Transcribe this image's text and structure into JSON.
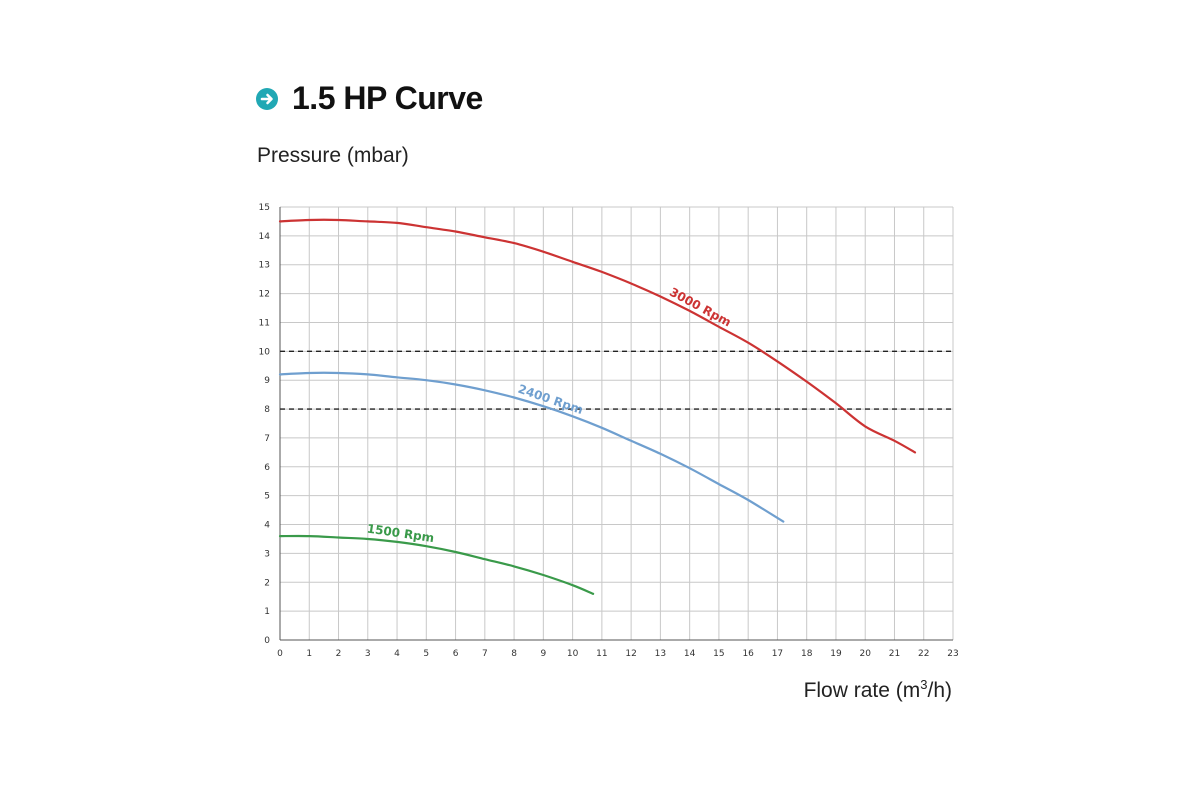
{
  "header": {
    "title": "1.5 HP Curve",
    "icon": "arrow-right-circle-icon",
    "icon_color": "#21a8b4"
  },
  "chart_data": {
    "type": "line",
    "ylabel": "Pressure (mbar)",
    "xlabel_main": "Flow rate (m",
    "xlabel_sup": "3",
    "xlabel_tail": "/h)",
    "xlim": [
      0,
      23
    ],
    "ylim": [
      0,
      15
    ],
    "xticks": [
      "0",
      "1",
      "2",
      "3",
      "4",
      "5",
      "6",
      "7",
      "8",
      "9",
      "10",
      "11",
      "12",
      "13",
      "14",
      "15",
      "16",
      "17",
      "18",
      "19",
      "20",
      "21",
      "22",
      "23"
    ],
    "yticks": [
      "0",
      "1",
      "2",
      "3",
      "4",
      "5",
      "6",
      "7",
      "8",
      "9",
      "10",
      "11",
      "12",
      "13",
      "14",
      "15"
    ],
    "grid": true,
    "reference_lines": [
      10,
      8
    ],
    "series": [
      {
        "name": "3000 Rpm",
        "color": "#cc3333",
        "points": [
          [
            0,
            14.5
          ],
          [
            1,
            14.55
          ],
          [
            2,
            14.55
          ],
          [
            3,
            14.5
          ],
          [
            4,
            14.45
          ],
          [
            5,
            14.3
          ],
          [
            6,
            14.15
          ],
          [
            7,
            13.95
          ],
          [
            8,
            13.75
          ],
          [
            9,
            13.45
          ],
          [
            10,
            13.1
          ],
          [
            11,
            12.75
          ],
          [
            12,
            12.35
          ],
          [
            13,
            11.9
          ],
          [
            14,
            11.4
          ],
          [
            15,
            10.85
          ],
          [
            16,
            10.3
          ],
          [
            17,
            9.65
          ],
          [
            18,
            8.95
          ],
          [
            19,
            8.2
          ],
          [
            20,
            7.4
          ],
          [
            21,
            6.9
          ],
          [
            21.7,
            6.5
          ]
        ]
      },
      {
        "name": "2400 Rpm",
        "color": "#6f9fcf",
        "points": [
          [
            0,
            9.2
          ],
          [
            1,
            9.25
          ],
          [
            2,
            9.25
          ],
          [
            3,
            9.2
          ],
          [
            4,
            9.1
          ],
          [
            5,
            9.0
          ],
          [
            6,
            8.85
          ],
          [
            7,
            8.65
          ],
          [
            8,
            8.4
          ],
          [
            9,
            8.1
          ],
          [
            10,
            7.75
          ],
          [
            11,
            7.35
          ],
          [
            12,
            6.9
          ],
          [
            13,
            6.45
          ],
          [
            14,
            5.95
          ],
          [
            15,
            5.4
          ],
          [
            16,
            4.85
          ],
          [
            17.2,
            4.1
          ]
        ]
      },
      {
        "name": "1500 Rpm",
        "color": "#3a9a4a",
        "points": [
          [
            0,
            3.6
          ],
          [
            1,
            3.6
          ],
          [
            2,
            3.55
          ],
          [
            3,
            3.5
          ],
          [
            4,
            3.4
          ],
          [
            5,
            3.25
          ],
          [
            6,
            3.05
          ],
          [
            7,
            2.8
          ],
          [
            8,
            2.55
          ],
          [
            9,
            2.25
          ],
          [
            10,
            1.9
          ],
          [
            10.7,
            1.6
          ]
        ]
      }
    ]
  }
}
